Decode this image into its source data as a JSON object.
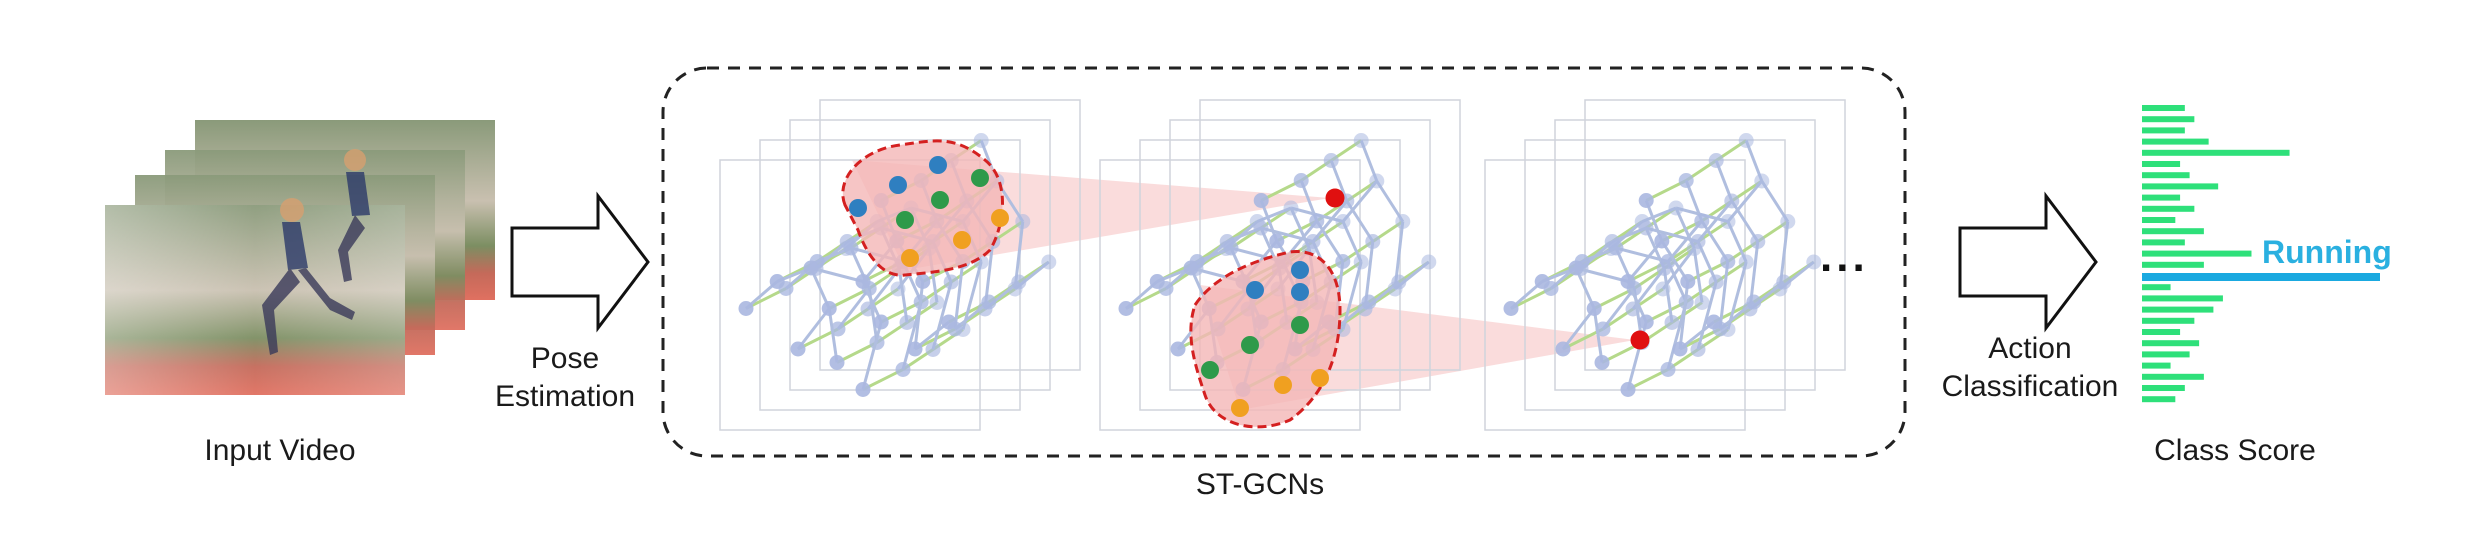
{
  "input": {
    "label": "Input Video"
  },
  "pose": {
    "label_line1": "Pose",
    "label_line2": "Estimation"
  },
  "stgcn": {
    "label": "ST-GCNs",
    "ellipsis": "..."
  },
  "action": {
    "label_line1": "Action",
    "label_line2": "Classification"
  },
  "score": {
    "label": "Class Score",
    "predicted_class": "Running",
    "bar_values": [
      0.18,
      0.22,
      0.18,
      0.28,
      0.62,
      0.16,
      0.2,
      0.32,
      0.16,
      0.22,
      0.14,
      0.26,
      0.18,
      0.46,
      0.26,
      1.0,
      0.12,
      0.34,
      0.3,
      0.22,
      0.16,
      0.24,
      0.2,
      0.12,
      0.26,
      0.18,
      0.14
    ],
    "highlight_index": 15,
    "colors": {
      "bar": "#2ee07a",
      "highlight": "#1aa9e0"
    }
  },
  "colors": {
    "node": "#aab8e0",
    "edge_spatial": "#b0bedf",
    "edge_temporal": "#b5d98a",
    "node_blue": "#2f7fc0",
    "node_green": "#2e9a4a",
    "node_orange": "#f0a020",
    "node_red": "#e01010",
    "region_fill": "#f4b6b6",
    "region_stroke": "#d42020",
    "cone": "#f8d0d0"
  }
}
